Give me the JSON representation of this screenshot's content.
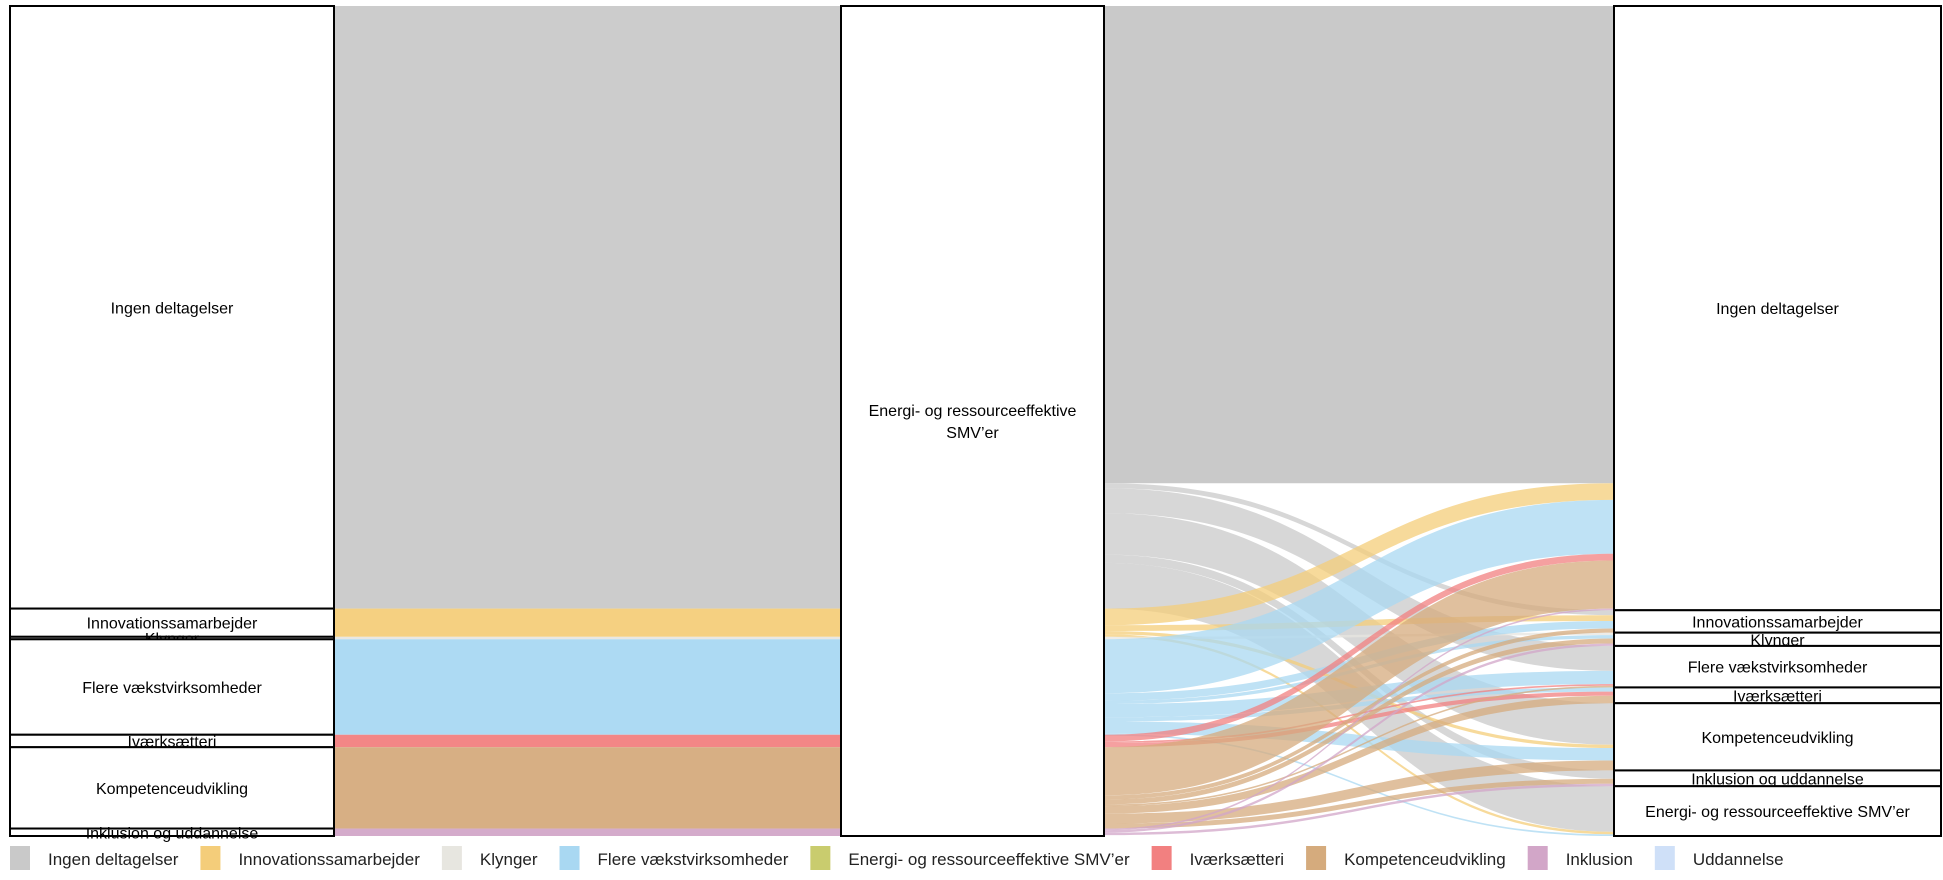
{
  "chart_data": {
    "type": "sankey",
    "categories": {
      "ingen": {
        "label": "Ingen deltagelser",
        "color": "#c9c9c9"
      },
      "innovation": {
        "label": "Innovationssamarbejder",
        "color": "#f4cd7a"
      },
      "klynger": {
        "label": "Klynger",
        "color": "#e7e6e0"
      },
      "flere": {
        "label": "Flere vækstvirksomheder",
        "color": "#a9d8f2"
      },
      "energi": {
        "label": "Energi- og ressourceeffektive SMV’er",
        "color": "#c9cc6e"
      },
      "ivaerk": {
        "label": "Iværksætteri",
        "color": "#f28080"
      },
      "kompetence": {
        "label": "Kompetenceudvikling",
        "color": "#d5ab7d"
      },
      "inklusion": {
        "label": "Inklusion",
        "color": "#d2a6c8"
      },
      "uddannelse": {
        "label": "Uddannelse",
        "color": "#cfe0f8"
      }
    },
    "legend_order": [
      "ingen",
      "innovation",
      "klynger",
      "flere",
      "energi",
      "ivaerk",
      "kompetence",
      "inklusion",
      "uddannelse"
    ],
    "left_nodes": [
      {
        "key": "ingen",
        "label": "Ingen deltagelser",
        "value": 72.6
      },
      {
        "key": "innovation",
        "label": "Innovationssamarbejder",
        "value": 3.4
      },
      {
        "key": "klynger",
        "label": "Klynger",
        "value": 0.3
      },
      {
        "key": "flere",
        "label": "Flere vækstvirksomheder",
        "value": 11.5
      },
      {
        "key": "ivaerk",
        "label": "Iværksætteri",
        "value": 1.5
      },
      {
        "key": "kompetence",
        "label": "Kompetenceudvikling",
        "value": 9.8
      },
      {
        "key": "inklusion",
        "label": "Inklusion og uddannelse",
        "value": 0.9
      }
    ],
    "middle_node": {
      "label_lines": [
        "Energi- og ressourceeffektive",
        "SMV’er"
      ]
    },
    "right_nodes": [
      {
        "key": "ingen",
        "label": "Ingen deltagelser",
        "value": 72.8
      },
      {
        "key": "innovation",
        "label": "Innovationssamarbejder",
        "value": 2.7
      },
      {
        "key": "klynger",
        "label": "Klynger",
        "value": 1.6
      },
      {
        "key": "flere",
        "label": "Flere vækstvirksomheder",
        "value": 5.0
      },
      {
        "key": "ivaerk",
        "label": "Iværksætteri",
        "value": 1.9
      },
      {
        "key": "kompetence",
        "label": "Kompetenceudvikling",
        "value": 8.1
      },
      {
        "key": "inklusion",
        "label": "Inklusion og uddannelse",
        "value": 1.9
      },
      {
        "key": "energi",
        "label": "Energi- og ressourceeffektive SMV’er",
        "value": 6.0
      }
    ],
    "right_flows": [
      {
        "from": "ingen",
        "to": "ingen",
        "value": 57.5
      },
      {
        "from": "ingen",
        "to": "innovation",
        "value": 0.6
      },
      {
        "from": "ingen",
        "to": "flere",
        "value": 3.0
      },
      {
        "from": "ingen",
        "to": "kompetence",
        "value": 5.0
      },
      {
        "from": "ingen",
        "to": "inklusion",
        "value": 1.0
      },
      {
        "from": "ingen",
        "to": "energi",
        "value": 5.5
      },
      {
        "from": "innovation",
        "to": "ingen",
        "value": 2.0
      },
      {
        "from": "innovation",
        "to": "innovation",
        "value": 0.7
      },
      {
        "from": "innovation",
        "to": "kompetence",
        "value": 0.4
      },
      {
        "from": "innovation",
        "to": "energi",
        "value": 0.3
      },
      {
        "from": "klynger",
        "to": "klynger",
        "value": 0.3
      },
      {
        "from": "flere",
        "to": "ingen",
        "value": 6.5
      },
      {
        "from": "flere",
        "to": "innovation",
        "value": 0.9
      },
      {
        "from": "flere",
        "to": "klynger",
        "value": 0.4
      },
      {
        "from": "flere",
        "to": "flere",
        "value": 1.6
      },
      {
        "from": "flere",
        "to": "ivaerk",
        "value": 0.5
      },
      {
        "from": "flere",
        "to": "kompetence",
        "value": 1.5
      },
      {
        "from": "flere",
        "to": "energi",
        "value": 0.2
      },
      {
        "from": "ivaerk",
        "to": "ingen",
        "value": 0.8
      },
      {
        "from": "ivaerk",
        "to": "flere",
        "value": 0.2
      },
      {
        "from": "ivaerk",
        "to": "ivaerk",
        "value": 0.5
      },
      {
        "from": "kompetence",
        "to": "ingen",
        "value": 5.8
      },
      {
        "from": "kompetence",
        "to": "innovation",
        "value": 0.5
      },
      {
        "from": "kompetence",
        "to": "klynger",
        "value": 0.6
      },
      {
        "from": "kompetence",
        "to": "flere",
        "value": 0.2
      },
      {
        "from": "kompetence",
        "to": "ivaerk",
        "value": 0.9
      },
      {
        "from": "kompetence",
        "to": "kompetence",
        "value": 1.2
      },
      {
        "from": "kompetence",
        "to": "inklusion",
        "value": 0.6
      },
      {
        "from": "inklusion",
        "to": "ingen",
        "value": 0.2
      },
      {
        "from": "inklusion",
        "to": "klynger",
        "value": 0.3
      },
      {
        "from": "inklusion",
        "to": "inklusion",
        "value": 0.3
      }
    ]
  }
}
